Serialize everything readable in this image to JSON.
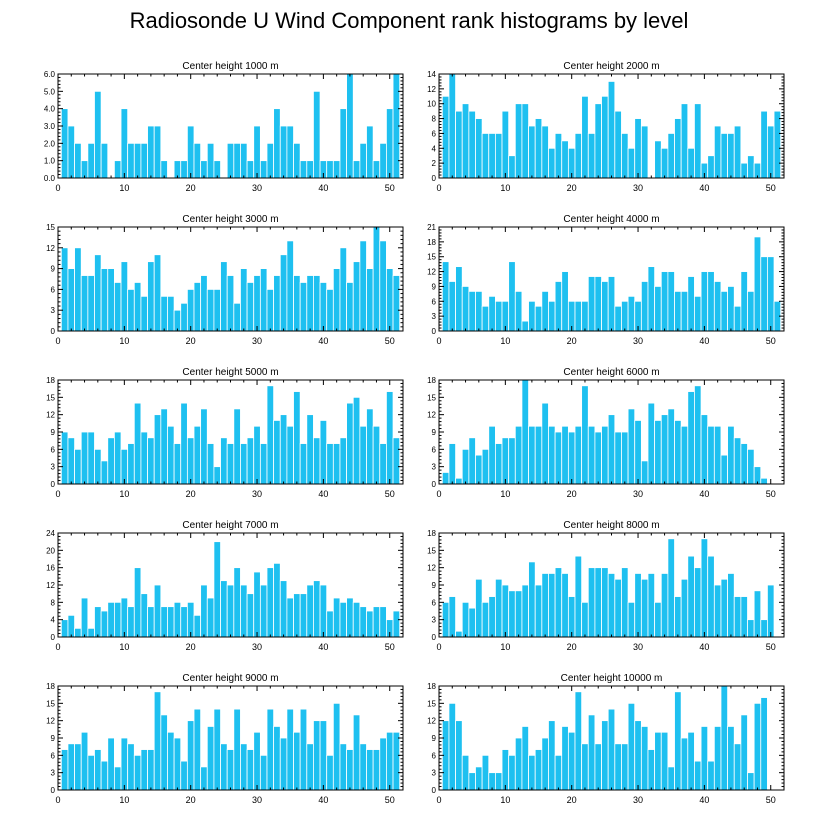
{
  "figure": {
    "title": "Radiosonde U Wind Component rank histograms by level"
  },
  "style": {
    "bar_color": "#1EC0F0",
    "bar_edge": "#ffffff",
    "axis_color": "#000000"
  },
  "chart_data": [
    {
      "type": "bar",
      "title": "Center height 1000 m",
      "ylim": [
        0,
        6
      ],
      "yticks": [
        "0.0",
        "1.0",
        "2.0",
        "3.0",
        "4.0",
        "5.0",
        "6.0"
      ],
      "xlim": [
        0,
        52
      ],
      "xticks": [
        0,
        10,
        20,
        30,
        40,
        50
      ],
      "values": [
        4,
        3,
        2,
        1,
        2,
        5,
        2,
        0,
        1,
        4,
        2,
        2,
        2,
        3,
        3,
        1,
        0,
        1,
        1,
        3,
        2,
        1,
        2,
        1,
        0,
        2,
        2,
        2,
        1,
        3,
        1,
        2,
        4,
        3,
        3,
        2,
        1,
        1,
        5,
        1,
        1,
        1,
        4,
        6,
        1,
        2,
        3,
        1,
        2,
        4,
        6
      ]
    },
    {
      "type": "bar",
      "title": "Center height 2000 m",
      "ylim": [
        0,
        14
      ],
      "yticks": [
        "0",
        "2",
        "4",
        "6",
        "8",
        "10",
        "12",
        "14"
      ],
      "xlim": [
        0,
        52
      ],
      "xticks": [
        0,
        10,
        20,
        30,
        40,
        50
      ],
      "values": [
        11,
        14,
        9,
        10,
        9,
        8,
        6,
        6,
        6,
        9,
        3,
        10,
        10,
        7,
        8,
        7,
        4,
        6,
        5,
        4,
        6,
        11,
        6,
        10,
        11,
        13,
        9,
        6,
        4,
        8,
        7,
        0,
        5,
        4,
        6,
        8,
        10,
        4,
        10,
        2,
        3,
        7,
        6,
        6,
        7,
        2,
        3,
        2,
        9,
        7,
        9
      ]
    },
    {
      "type": "bar",
      "title": "Center height 3000 m",
      "ylim": [
        0,
        15
      ],
      "yticks": [
        "0",
        "3",
        "6",
        "9",
        "12",
        "15"
      ],
      "xlim": [
        0,
        52
      ],
      "xticks": [
        0,
        10,
        20,
        30,
        40,
        50
      ],
      "values": [
        12,
        9,
        12,
        8,
        8,
        11,
        9,
        9,
        7,
        10,
        6,
        7,
        5,
        10,
        11,
        5,
        5,
        3,
        4,
        6,
        7,
        8,
        6,
        6,
        10,
        8,
        4,
        9,
        7,
        8,
        9,
        6,
        8,
        11,
        13,
        8,
        7,
        8,
        8,
        7,
        6,
        9,
        12,
        7,
        10,
        13,
        9,
        15,
        13,
        9,
        8
      ]
    },
    {
      "type": "bar",
      "title": "Center height 4000 m",
      "ylim": [
        0,
        21
      ],
      "yticks": [
        "0",
        "3",
        "6",
        "9",
        "12",
        "15",
        "18",
        "21"
      ],
      "xlim": [
        0,
        52
      ],
      "xticks": [
        0,
        10,
        20,
        30,
        40,
        50
      ],
      "values": [
        14,
        10,
        13,
        9,
        8,
        8,
        5,
        7,
        6,
        6,
        14,
        8,
        2,
        6,
        5,
        8,
        6,
        10,
        12,
        6,
        6,
        6,
        11,
        11,
        10,
        11,
        5,
        6,
        7,
        6,
        10,
        13,
        9,
        12,
        12,
        8,
        8,
        11,
        7,
        12,
        12,
        10,
        8,
        9,
        5,
        12,
        8,
        19,
        15,
        15,
        6
      ]
    },
    {
      "type": "bar",
      "title": "Center height 5000 m",
      "ylim": [
        0,
        18
      ],
      "yticks": [
        "0",
        "3",
        "6",
        "9",
        "12",
        "15",
        "18"
      ],
      "xlim": [
        0,
        52
      ],
      "xticks": [
        0,
        10,
        20,
        30,
        40,
        50
      ],
      "values": [
        9,
        8,
        6,
        9,
        9,
        6,
        4,
        8,
        9,
        6,
        7,
        14,
        9,
        8,
        12,
        13,
        10,
        7,
        14,
        8,
        10,
        13,
        7,
        3,
        8,
        7,
        13,
        7,
        8,
        10,
        7,
        17,
        11,
        12,
        10,
        16,
        7,
        12,
        8,
        11,
        7,
        7,
        8,
        14,
        15,
        10,
        13,
        10,
        7,
        16,
        8
      ]
    },
    {
      "type": "bar",
      "title": "Center height 6000 m",
      "ylim": [
        0,
        18
      ],
      "yticks": [
        "0",
        "3",
        "6",
        "9",
        "12",
        "15",
        "18"
      ],
      "xlim": [
        0,
        52
      ],
      "xticks": [
        0,
        10,
        20,
        30,
        40,
        50
      ],
      "values": [
        2,
        7,
        1,
        6,
        8,
        5,
        6,
        10,
        7,
        8,
        8,
        10,
        18,
        10,
        10,
        14,
        10,
        9,
        10,
        9,
        10,
        17,
        10,
        9,
        10,
        12,
        9,
        9,
        13,
        11,
        4,
        14,
        11,
        12,
        13,
        11,
        10,
        16,
        17,
        12,
        10,
        10,
        5,
        10,
        8,
        7,
        6,
        3,
        1,
        0,
        0
      ]
    },
    {
      "type": "bar",
      "title": "Center height 7000 m",
      "ylim": [
        0,
        24
      ],
      "yticks": [
        "0",
        "4",
        "8",
        "12",
        "16",
        "20",
        "24"
      ],
      "xlim": [
        0,
        52
      ],
      "xticks": [
        0,
        10,
        20,
        30,
        40,
        50
      ],
      "values": [
        4,
        5,
        2,
        9,
        2,
        7,
        6,
        8,
        8,
        9,
        7,
        16,
        10,
        7,
        12,
        7,
        7,
        8,
        7,
        8,
        5,
        12,
        9,
        22,
        13,
        12,
        16,
        12,
        10,
        15,
        12,
        16,
        17,
        13,
        9,
        10,
        10,
        12,
        13,
        12,
        6,
        9,
        8,
        9,
        8,
        7,
        6,
        7,
        7,
        4,
        6
      ]
    },
    {
      "type": "bar",
      "title": "Center height 8000 m",
      "ylim": [
        0,
        18
      ],
      "yticks": [
        "0",
        "3",
        "6",
        "9",
        "12",
        "15",
        "18"
      ],
      "xlim": [
        0,
        52
      ],
      "xticks": [
        0,
        10,
        20,
        30,
        40,
        50
      ],
      "values": [
        6,
        7,
        1,
        6,
        5,
        10,
        6,
        7,
        10,
        9,
        8,
        8,
        9,
        13,
        9,
        11,
        11,
        12,
        11,
        7,
        14,
        6,
        12,
        12,
        12,
        11,
        10,
        12,
        6,
        11,
        10,
        11,
        6,
        11,
        17,
        7,
        10,
        14,
        12,
        17,
        14,
        9,
        10,
        11,
        7,
        7,
        3,
        8,
        3,
        9,
        0
      ]
    },
    {
      "type": "bar",
      "title": "Center height 9000 m",
      "ylim": [
        0,
        18
      ],
      "yticks": [
        "0",
        "3",
        "6",
        "9",
        "12",
        "15",
        "18"
      ],
      "xlim": [
        0,
        52
      ],
      "xticks": [
        0,
        10,
        20,
        30,
        40,
        50
      ],
      "values": [
        7,
        8,
        8,
        10,
        6,
        7,
        5,
        9,
        4,
        9,
        8,
        6,
        7,
        7,
        17,
        13,
        10,
        9,
        5,
        12,
        14,
        4,
        11,
        14,
        8,
        7,
        14,
        8,
        7,
        10,
        6,
        14,
        11,
        9,
        14,
        10,
        14,
        8,
        12,
        12,
        6,
        15,
        8,
        7,
        13,
        8,
        7,
        7,
        9,
        10,
        10
      ]
    },
    {
      "type": "bar",
      "title": "Center height 10000 m",
      "ylim": [
        0,
        18
      ],
      "yticks": [
        "0",
        "3",
        "6",
        "9",
        "12",
        "15",
        "18"
      ],
      "xlim": [
        0,
        52
      ],
      "xticks": [
        0,
        10,
        20,
        30,
        40,
        50
      ],
      "values": [
        12,
        15,
        12,
        6,
        3,
        4,
        6,
        3,
        3,
        7,
        6,
        9,
        11,
        6,
        7,
        9,
        12,
        6,
        11,
        10,
        17,
        8,
        13,
        8,
        12,
        14,
        8,
        8,
        15,
        12,
        11,
        7,
        10,
        10,
        4,
        17,
        9,
        10,
        5,
        11,
        5,
        11,
        18,
        11,
        8,
        13,
        3,
        15,
        16,
        0,
        0
      ]
    }
  ]
}
